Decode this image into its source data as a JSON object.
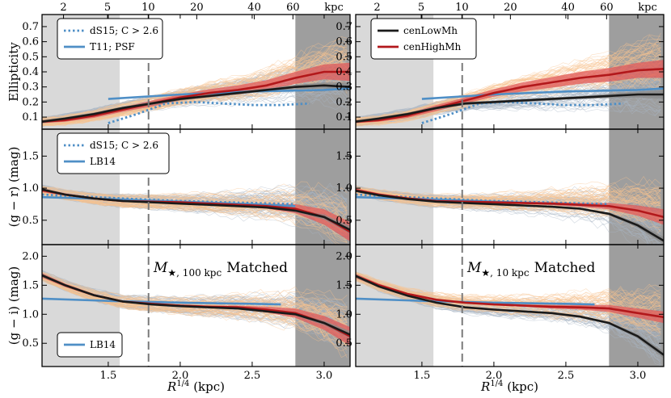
{
  "chart_data": {
    "type": "line",
    "xlabel": "R^{1/4} (kpc)",
    "xlabel_sub": "R",
    "xlabel_sup": "1/4",
    "xlabel_unit": "(kpc)",
    "xlim": [
      1.04,
      3.18
    ],
    "xticks": [
      1.5,
      2.0,
      2.5,
      3.0
    ],
    "xticklabels": [
      "1.5",
      "2.0",
      "2.5",
      "3.0"
    ],
    "top_axis": {
      "ticks_kpc": [
        2,
        5,
        10,
        20,
        40,
        60
      ],
      "labels": [
        "2",
        "5",
        "10",
        "20",
        "40",
        "60"
      ],
      "unit_label": "kpc"
    },
    "shaded_regions": [
      {
        "name": "inner",
        "x": [
          1.04,
          1.58
        ],
        "color": "#d9d9d9"
      },
      {
        "name": "outer",
        "x": [
          2.8,
          3.18
        ],
        "color": "#9e9e9e"
      }
    ],
    "vline_x": 1.78,
    "rows": [
      {
        "name": "ellipticity",
        "ylabel": "Ellipticity",
        "ylim": [
          0.02,
          0.78
        ],
        "yticks": [
          0.1,
          0.2,
          0.3,
          0.4,
          0.5,
          0.6,
          0.7
        ],
        "yticklabels": [
          "0.1",
          "0.2",
          "0.3",
          "0.4",
          "0.5",
          "0.6",
          "0.7"
        ]
      },
      {
        "name": "g-r",
        "ylabel": "(g − r) (mag)",
        "ylim": [
          0.12,
          1.92
        ],
        "yticks": [
          0.5,
          1.0,
          1.5
        ],
        "yticklabels": [
          "0.5",
          "1.0",
          "1.5"
        ]
      },
      {
        "name": "g-i",
        "ylabel": "(g − i) (mag)",
        "ylim": [
          0.1,
          2.2
        ],
        "yticks": [
          0.5,
          1.0,
          1.5,
          2.0
        ],
        "yticklabels": [
          "0.5",
          "1.0",
          "1.5",
          "2.0"
        ]
      }
    ],
    "colors": {
      "cenLowMh": "#1a1a1a",
      "cenHighMh": "#b2181b",
      "band_low": "#8a8a8a",
      "band_high": "#e05a5a",
      "reference": "#4f8fc6",
      "bg_orange": "#f7c38f",
      "bg_gray": "#a9b6c5"
    },
    "legends": {
      "left_row0": [
        {
          "label": "dS15;  C > 2.6",
          "style": "dotted",
          "color": "#4f8fc6"
        },
        {
          "label": "T11;  PSF",
          "style": "solid",
          "color": "#4f8fc6"
        }
      ],
      "right_row0": [
        {
          "label": "cenLowMh",
          "style": "solid",
          "color": "#1a1a1a"
        },
        {
          "label": "cenHighMh",
          "style": "solid",
          "color": "#b2181b"
        }
      ],
      "left_row1": [
        {
          "label": "dS15;  C > 2.6",
          "style": "dotted",
          "color": "#4f8fc6"
        },
        {
          "label": "LB14",
          "style": "solid",
          "color": "#4f8fc6"
        }
      ],
      "left_row2": [
        {
          "label": "LB14",
          "style": "solid",
          "color": "#4f8fc6"
        }
      ]
    },
    "annotations": {
      "left": {
        "pre": "M",
        "sub": "★, 100 kpc",
        "post": "Matched"
      },
      "right": {
        "pre": "M",
        "sub": "★, 10 kpc",
        "post": "Matched"
      }
    },
    "panels": [
      {
        "row": 0,
        "col": 0,
        "series": [
          {
            "name": "cenLowMh",
            "x": [
              1.04,
              1.2,
              1.4,
              1.6,
              1.8,
              2.0,
              2.2,
              2.4,
              2.6,
              2.8,
              3.0,
              3.18
            ],
            "y": [
              0.07,
              0.09,
              0.12,
              0.16,
              0.19,
              0.22,
              0.24,
              0.26,
              0.28,
              0.3,
              0.31,
              0.3
            ],
            "err": [
              0.01,
              0.01,
              0.01,
              0.01,
              0.01,
              0.01,
              0.01,
              0.01,
              0.01,
              0.015,
              0.02,
              0.03
            ]
          },
          {
            "name": "cenHighMh",
            "x": [
              1.04,
              1.2,
              1.4,
              1.6,
              1.8,
              2.0,
              2.2,
              2.4,
              2.6,
              2.8,
              3.0,
              3.18
            ],
            "y": [
              0.07,
              0.08,
              0.11,
              0.15,
              0.19,
              0.23,
              0.26,
              0.28,
              0.31,
              0.36,
              0.4,
              0.4
            ],
            "err": [
              0.01,
              0.01,
              0.015,
              0.015,
              0.02,
              0.02,
              0.025,
              0.03,
              0.035,
              0.04,
              0.05,
              0.06
            ]
          },
          {
            "name": "T11; PSF",
            "style": "solid",
            "x": [
              1.5,
              2.0,
              2.5,
              3.0,
              3.18
            ],
            "y": [
              0.22,
              0.25,
              0.27,
              0.28,
              0.29
            ]
          },
          {
            "name": "dS15; C>2.6",
            "style": "dotted",
            "x": [
              1.5,
              1.7,
              1.9,
              2.1,
              2.3,
              2.5,
              2.7,
              2.9
            ],
            "y": [
              0.06,
              0.12,
              0.19,
              0.2,
              0.19,
              0.18,
              0.18,
              0.19
            ]
          }
        ]
      },
      {
        "row": 0,
        "col": 1,
        "series": [
          {
            "name": "cenLowMh",
            "x": [
              1.04,
              1.2,
              1.4,
              1.6,
              1.8,
              2.0,
              2.2,
              2.4,
              2.6,
              2.8,
              3.0,
              3.18
            ],
            "y": [
              0.07,
              0.09,
              0.12,
              0.16,
              0.19,
              0.2,
              0.21,
              0.22,
              0.23,
              0.24,
              0.25,
              0.25
            ],
            "err": [
              0.01,
              0.01,
              0.01,
              0.01,
              0.01,
              0.01,
              0.01,
              0.01,
              0.01,
              0.015,
              0.02,
              0.03
            ]
          },
          {
            "name": "cenHighMh",
            "x": [
              1.04,
              1.2,
              1.4,
              1.6,
              1.8,
              2.0,
              2.2,
              2.4,
              2.6,
              2.8,
              3.0,
              3.18
            ],
            "y": [
              0.07,
              0.08,
              0.11,
              0.16,
              0.21,
              0.26,
              0.3,
              0.33,
              0.36,
              0.38,
              0.41,
              0.42
            ],
            "err": [
              0.01,
              0.01,
              0.015,
              0.02,
              0.02,
              0.025,
              0.03,
              0.035,
              0.04,
              0.045,
              0.05,
              0.06
            ]
          },
          {
            "name": "T11; PSF",
            "style": "solid",
            "x": [
              1.5,
              2.0,
              2.5,
              3.0,
              3.18
            ],
            "y": [
              0.22,
              0.25,
              0.27,
              0.28,
              0.29
            ]
          },
          {
            "name": "dS15; C>2.6",
            "style": "dotted",
            "x": [
              1.5,
              1.7,
              1.9,
              2.1,
              2.3,
              2.5,
              2.7,
              2.9
            ],
            "y": [
              0.06,
              0.12,
              0.19,
              0.2,
              0.19,
              0.18,
              0.18,
              0.19
            ]
          }
        ]
      },
      {
        "row": 1,
        "col": 0,
        "series": [
          {
            "name": "cenLowMh",
            "x": [
              1.04,
              1.2,
              1.4,
              1.6,
              1.8,
              2.0,
              2.2,
              2.4,
              2.6,
              2.8,
              3.0,
              3.18
            ],
            "y": [
              0.98,
              0.9,
              0.84,
              0.8,
              0.78,
              0.76,
              0.74,
              0.72,
              0.7,
              0.65,
              0.55,
              0.35
            ],
            "err": [
              0.02,
              0.015,
              0.01,
              0.01,
              0.01,
              0.01,
              0.01,
              0.01,
              0.015,
              0.02,
              0.04,
              0.06
            ]
          },
          {
            "name": "cenHighMh",
            "x": [
              1.04,
              1.2,
              1.4,
              1.6,
              1.8,
              2.0,
              2.2,
              2.4,
              2.6,
              2.8,
              3.0,
              3.18
            ],
            "y": [
              0.97,
              0.9,
              0.84,
              0.8,
              0.79,
              0.78,
              0.76,
              0.74,
              0.72,
              0.68,
              0.55,
              0.32
            ],
            "err": [
              0.03,
              0.02,
              0.015,
              0.015,
              0.015,
              0.015,
              0.02,
              0.025,
              0.04,
              0.07,
              0.12,
              0.15
            ]
          },
          {
            "name": "LB14",
            "style": "solid",
            "x": [
              1.04,
              1.5,
              2.0,
              2.5,
              2.8
            ],
            "y": [
              0.86,
              0.83,
              0.79,
              0.75,
              0.72
            ]
          },
          {
            "name": "dS15; C>2.6",
            "style": "dotted",
            "x": [
              1.04,
              1.5,
              2.0,
              2.5,
              2.8
            ],
            "y": [
              0.9,
              0.85,
              0.8,
              0.77,
              0.75
            ]
          }
        ]
      },
      {
        "row": 1,
        "col": 1,
        "series": [
          {
            "name": "cenLowMh",
            "x": [
              1.04,
              1.2,
              1.4,
              1.6,
              1.8,
              2.0,
              2.2,
              2.4,
              2.6,
              2.8,
              3.0,
              3.18
            ],
            "y": [
              0.96,
              0.89,
              0.83,
              0.79,
              0.77,
              0.75,
              0.73,
              0.71,
              0.68,
              0.6,
              0.42,
              0.18
            ],
            "err": [
              0.02,
              0.015,
              0.01,
              0.01,
              0.01,
              0.01,
              0.01,
              0.01,
              0.015,
              0.02,
              0.04,
              0.06
            ]
          },
          {
            "name": "cenHighMh",
            "x": [
              1.04,
              1.2,
              1.4,
              1.6,
              1.8,
              2.0,
              2.2,
              2.4,
              2.6,
              2.8,
              3.0,
              3.18
            ],
            "y": [
              0.97,
              0.9,
              0.84,
              0.8,
              0.79,
              0.78,
              0.77,
              0.76,
              0.74,
              0.72,
              0.65,
              0.55
            ],
            "err": [
              0.03,
              0.02,
              0.015,
              0.015,
              0.015,
              0.015,
              0.02,
              0.025,
              0.03,
              0.05,
              0.08,
              0.12
            ]
          },
          {
            "name": "LB14",
            "style": "solid",
            "x": [
              1.04,
              1.5,
              2.0,
              2.5,
              2.8
            ],
            "y": [
              0.86,
              0.83,
              0.79,
              0.75,
              0.72
            ]
          },
          {
            "name": "dS15; C>2.6",
            "style": "dotted",
            "x": [
              1.04,
              1.5,
              2.0,
              2.5,
              2.8
            ],
            "y": [
              0.9,
              0.85,
              0.8,
              0.77,
              0.75
            ]
          }
        ]
      },
      {
        "row": 2,
        "col": 0,
        "series": [
          {
            "name": "cenLowMh",
            "x": [
              1.04,
              1.2,
              1.4,
              1.6,
              1.8,
              2.0,
              2.2,
              2.4,
              2.6,
              2.8,
              3.0,
              3.18
            ],
            "y": [
              1.67,
              1.5,
              1.33,
              1.22,
              1.17,
              1.14,
              1.12,
              1.1,
              1.05,
              1.0,
              0.85,
              0.65
            ],
            "err": [
              0.03,
              0.02,
              0.015,
              0.01,
              0.01,
              0.01,
              0.01,
              0.01,
              0.015,
              0.02,
              0.04,
              0.06
            ]
          },
          {
            "name": "cenHighMh",
            "x": [
              1.04,
              1.2,
              1.4,
              1.6,
              1.8,
              2.0,
              2.2,
              2.4,
              2.6,
              2.8,
              3.0,
              3.18
            ],
            "y": [
              1.67,
              1.5,
              1.33,
              1.22,
              1.18,
              1.15,
              1.13,
              1.12,
              1.08,
              1.02,
              0.85,
              0.62
            ],
            "err": [
              0.04,
              0.03,
              0.02,
              0.015,
              0.015,
              0.015,
              0.02,
              0.03,
              0.05,
              0.08,
              0.12,
              0.16
            ]
          },
          {
            "name": "LB14",
            "style": "solid",
            "x": [
              1.04,
              1.5,
              2.0,
              2.5,
              2.7
            ],
            "y": [
              1.27,
              1.23,
              1.2,
              1.18,
              1.17
            ]
          }
        ]
      },
      {
        "row": 2,
        "col": 1,
        "series": [
          {
            "name": "cenLowMh",
            "x": [
              1.04,
              1.2,
              1.4,
              1.6,
              1.8,
              2.0,
              2.2,
              2.4,
              2.6,
              2.8,
              3.0,
              3.18
            ],
            "y": [
              1.66,
              1.48,
              1.32,
              1.2,
              1.12,
              1.08,
              1.05,
              1.02,
              0.96,
              0.85,
              0.62,
              0.3
            ],
            "err": [
              0.03,
              0.02,
              0.015,
              0.01,
              0.01,
              0.01,
              0.01,
              0.01,
              0.015,
              0.02,
              0.04,
              0.06
            ]
          },
          {
            "name": "cenHighMh",
            "x": [
              1.04,
              1.2,
              1.4,
              1.6,
              1.8,
              2.0,
              2.2,
              2.4,
              2.6,
              2.8,
              3.0,
              3.18
            ],
            "y": [
              1.66,
              1.5,
              1.35,
              1.25,
              1.2,
              1.17,
              1.15,
              1.13,
              1.12,
              1.1,
              1.02,
              0.95
            ],
            "err": [
              0.04,
              0.03,
              0.02,
              0.015,
              0.015,
              0.015,
              0.02,
              0.03,
              0.04,
              0.06,
              0.08,
              0.1
            ]
          },
          {
            "name": "LB14",
            "style": "solid",
            "x": [
              1.04,
              1.5,
              2.0,
              2.5,
              2.7
            ],
            "y": [
              1.27,
              1.23,
              1.2,
              1.18,
              1.17
            ]
          }
        ]
      }
    ]
  }
}
